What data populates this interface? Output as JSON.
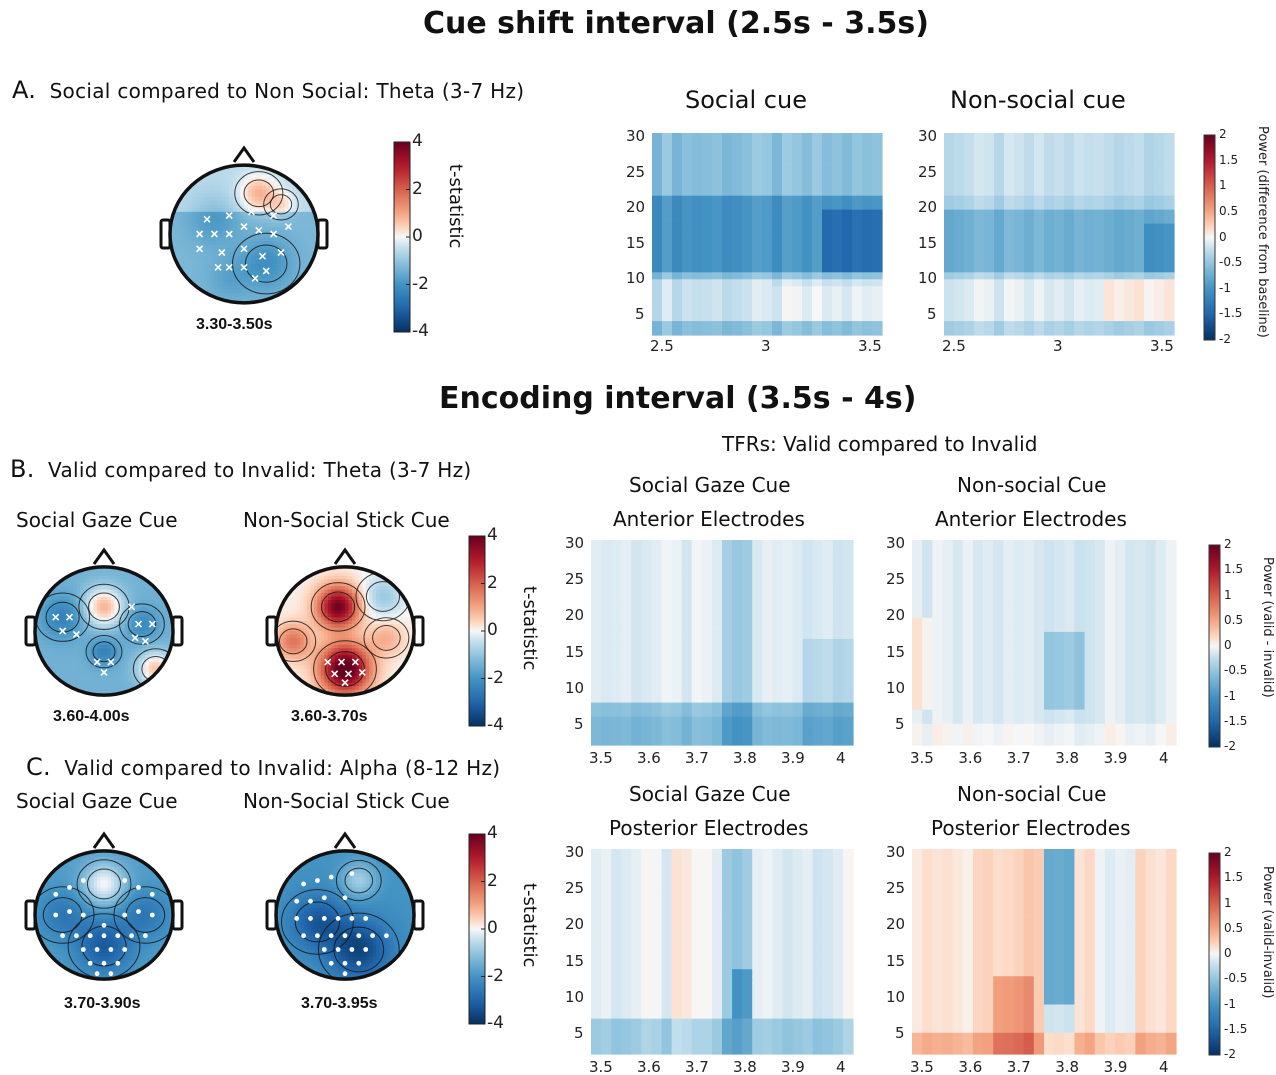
{
  "titles": {
    "cue": "Cue shift interval (2.5s - 3.5s)",
    "enc": "Encoding interval (3.5s - 4s)"
  },
  "sections": {
    "a": {
      "letter": "A.",
      "label": "Social compared to Non Social: Theta (3-7 Hz)"
    },
    "b": {
      "letter": "B.",
      "label": "Valid compared to Invalid: Theta (3-7 Hz)"
    },
    "c": {
      "letter": "C.",
      "label": "Valid compared to Invalid: Alpha (8-12 Hz)"
    }
  },
  "heads": {
    "a": {
      "range": "3.30-3.50s"
    },
    "b1": {
      "title": "Social Gaze Cue",
      "range": "3.60-4.00s"
    },
    "b2": {
      "title": "Non-Social Stick Cue",
      "range": "3.60-3.70s"
    },
    "c1": {
      "title": "Social Gaze Cue",
      "range": "3.70-3.90s"
    },
    "c2": {
      "title": "Non-Social Stick Cue",
      "range": "3.70-3.95s"
    }
  },
  "colorbars": {
    "tstat": {
      "label": "t-statistic",
      "ticks": [
        "4",
        "2",
        "0",
        "-2",
        "-4"
      ]
    },
    "power_a": {
      "label": "Power (difference from baseline)",
      "ticks": [
        "2",
        "1.5",
        "1",
        "0.5",
        "0",
        "-0.5",
        "-1",
        "-1.5",
        "-2"
      ]
    },
    "power_b": {
      "label": "Power (valid - invalid)",
      "ticks": [
        "2",
        "1.5",
        "1",
        "0.5",
        "0",
        "-0.5",
        "-1",
        "-1.5",
        "-2"
      ]
    },
    "power_c": {
      "label": "Power (valid-invalid)",
      "ticks": [
        "2",
        "1.5",
        "1",
        "0.5",
        "0",
        "-0.5",
        "-1",
        "-1.5",
        "-2"
      ]
    }
  },
  "tfr": {
    "header": "TFRs: Valid compared to Invalid",
    "social_cue": "Social cue",
    "nonsocial_cue": "Non-social cue",
    "social_gaze": "Social Gaze Cue",
    "nonsocial": "Non-social Cue",
    "anterior": "Anterior Electrodes",
    "posterior": "Posterior Electrodes",
    "yticks": [
      "30",
      "25",
      "20",
      "15",
      "10",
      "5"
    ],
    "xticks_cue": [
      "2.5",
      "3",
      "3.5"
    ],
    "xticks_enc": [
      "3.5",
      "3.6",
      "3.7",
      "3.8",
      "3.9",
      "4"
    ]
  },
  "colors": {
    "diverging_low": "#053061",
    "diverging_mid": "#f7f7f7",
    "diverging_high": "#67001f"
  }
}
